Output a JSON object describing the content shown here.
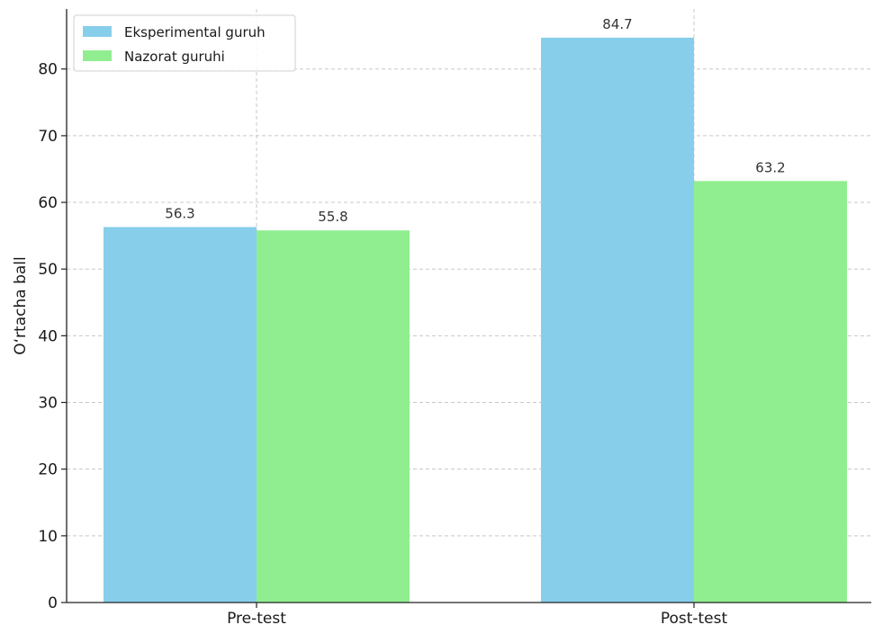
{
  "chart_data": {
    "type": "bar",
    "title": "",
    "xlabel": "",
    "ylabel": "O‘rtacha ball",
    "categories": [
      "Pre-test",
      "Post-test"
    ],
    "series": [
      {
        "name": "Eksperimental guruh",
        "values": [
          56.3,
          84.7
        ],
        "color": "#87ceeb"
      },
      {
        "name": "Nazorat guruhi",
        "values": [
          55.8,
          63.2
        ],
        "color": "#90ee90"
      }
    ],
    "data_labels": [
      [
        "56.3",
        "84.7"
      ],
      [
        "55.8",
        "63.2"
      ]
    ],
    "yticks": [
      0,
      10,
      20,
      30,
      40,
      50,
      60,
      70,
      80
    ],
    "ylim": [
      0,
      89
    ],
    "grid": true,
    "legend_position": "top-left"
  }
}
